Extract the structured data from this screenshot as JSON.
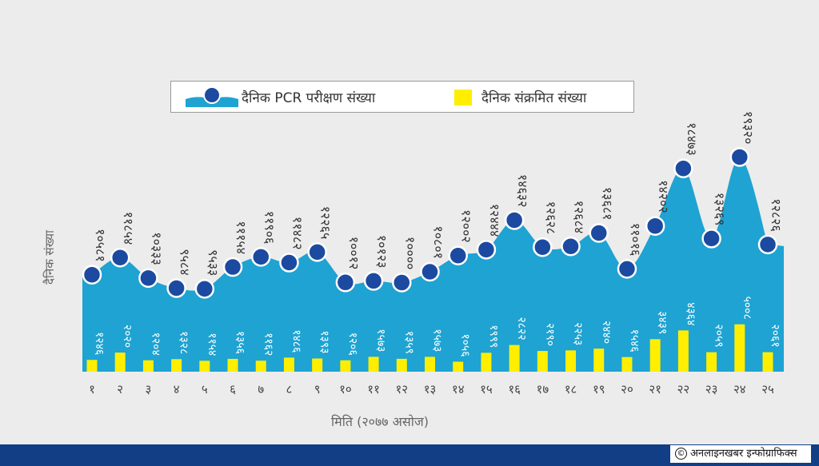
{
  "chart_data": {
    "type": "line+bar",
    "xlabel": "मिति (२०७७ असोज)",
    "ylabel": "दैनिक संख्या",
    "categories": [
      "१",
      "२",
      "३",
      "४",
      "५",
      "६",
      "७",
      "८",
      "९",
      "१०",
      "११",
      "१२",
      "१३",
      "१४",
      "१५",
      "१६",
      "१७",
      "१८",
      "१९",
      "२०",
      "२१",
      "२२",
      "२३",
      "२४",
      "२५"
    ],
    "series": [
      {
        "name": "दैनिक PCR परीक्षण संख्या",
        "kind": "area-line",
        "color": "#1ea3d2",
        "values": [
          10581,
          11854,
          10333,
          9584,
          9533,
          11154,
          11906,
          11482,
          12265,
          10012,
          10123,
          10000,
          10801,
          12002,
          12444,
          14632,
          12628,
          12684,
          13681,
          11016,
          14202,
          18473,
          13269,
          19320,
          12826
        ],
        "labels": [
          "१०५८१",
          "११८५४",
          "१०३३३",
          "९५८४",
          "९५३३",
          "१११५४",
          "११९०६",
          "११४८२",
          "१२२६५",
          "१००१२",
          "१०१२३",
          "१००००",
          "१०८०१",
          "१२००२",
          "१२४४४",
          "१४६३२",
          "१२६२८",
          "१२६८४",
          "१३६८१",
          "११०१६",
          "१४२०२",
          "१८४७३",
          "१३२६९",
          "१९३२०",
          "१२८२६"
        ]
      },
      {
        "name": "दैनिक संक्रमित संख्या",
        "kind": "bar",
        "color": "#ffee00",
        "values": [
          1246,
          2020,
          1204,
          1328,
          1154,
          1356,
          1162,
          1486,
          1393,
          1206,
          1573,
          1359,
          1573,
          1056,
          1999,
          2822,
          2190,
          2253,
          2440,
          1546,
          3439,
          4364,
          2059,
          5008,
          2061
        ],
        "labels": [
          "१२४६",
          "२०२०",
          "१२०४",
          "१३२८",
          "११५४",
          "१३५६",
          "११६२",
          "१४८६",
          "१३९३",
          "१२०६",
          "१५७३",
          "१३५९",
          "१५७३",
          "१०५६",
          "१९९९",
          "२८२२",
          "२१९०",
          "२२५३",
          "२४४०",
          "१५४६",
          "३४३९",
          "४३६४",
          "२०५९",
          "५००८",
          "२०६१"
        ]
      }
    ],
    "legend_position": "top-center",
    "grid": false
  },
  "credit": "अनलाइनखबर इन्फोग्राफिक्स",
  "credit_symbol": "©",
  "colors": {
    "background": "#ececec",
    "area": "#1ea3d2",
    "marker": "#1c4aa0",
    "bar": "#ffee00",
    "footer": "#113e84"
  }
}
